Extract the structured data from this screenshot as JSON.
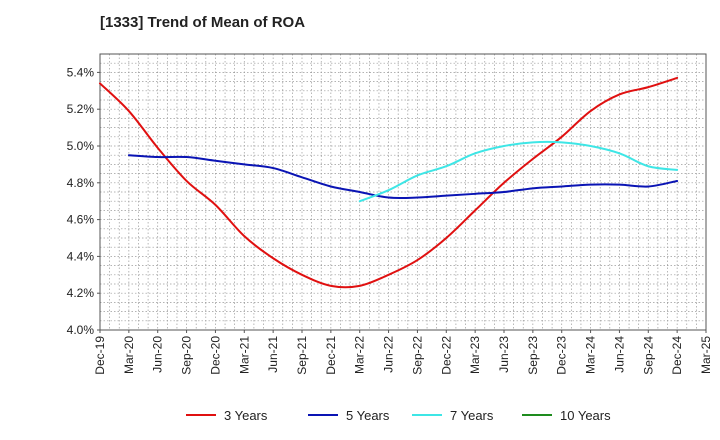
{
  "chart_data": {
    "type": "line",
    "title": "[1333]  Trend of Mean of ROA",
    "xlabel": "",
    "ylabel": "",
    "x_ticks": [
      "Dec-19",
      "Mar-20",
      "Jun-20",
      "Sep-20",
      "Dec-20",
      "Mar-21",
      "Jun-21",
      "Sep-21",
      "Dec-21",
      "Mar-22",
      "Jun-22",
      "Sep-22",
      "Dec-22",
      "Mar-23",
      "Jun-23",
      "Sep-23",
      "Dec-23",
      "Mar-24",
      "Jun-24",
      "Sep-24",
      "Dec-24",
      "Mar-25"
    ],
    "y_ticks": [
      "4.0%",
      "4.2%",
      "4.4%",
      "4.6%",
      "4.8%",
      "5.0%",
      "5.2%",
      "5.4%"
    ],
    "ylim": [
      4.0,
      5.5
    ],
    "y_unit": "%",
    "grid": true,
    "legend_position": "bottom",
    "series": [
      {
        "name": "3 Years",
        "color": "#e01010",
        "points": [
          [
            "Dec-19",
            5.34
          ],
          [
            "Mar-20",
            5.19
          ],
          [
            "Jun-20",
            4.99
          ],
          [
            "Sep-20",
            4.81
          ],
          [
            "Dec-20",
            4.68
          ],
          [
            "Mar-21",
            4.51
          ],
          [
            "Jun-21",
            4.39
          ],
          [
            "Sep-21",
            4.3
          ],
          [
            "Dec-21",
            4.24
          ],
          [
            "Mar-22",
            4.24
          ],
          [
            "Jun-22",
            4.3
          ],
          [
            "Sep-22",
            4.38
          ],
          [
            "Dec-22",
            4.5
          ],
          [
            "Mar-23",
            4.65
          ],
          [
            "Jun-23",
            4.8
          ],
          [
            "Sep-23",
            4.93
          ],
          [
            "Dec-23",
            5.05
          ],
          [
            "Mar-24",
            5.19
          ],
          [
            "Jun-24",
            5.28
          ],
          [
            "Sep-24",
            5.32
          ],
          [
            "Dec-24",
            5.37
          ]
        ]
      },
      {
        "name": "5 Years",
        "color": "#0a14b4",
        "points": [
          [
            "Mar-20",
            4.95
          ],
          [
            "Jun-20",
            4.94
          ],
          [
            "Sep-20",
            4.94
          ],
          [
            "Dec-20",
            4.92
          ],
          [
            "Mar-21",
            4.9
          ],
          [
            "Jun-21",
            4.88
          ],
          [
            "Sep-21",
            4.83
          ],
          [
            "Dec-21",
            4.78
          ],
          [
            "Mar-22",
            4.75
          ],
          [
            "Jun-22",
            4.72
          ],
          [
            "Sep-22",
            4.72
          ],
          [
            "Dec-22",
            4.73
          ],
          [
            "Mar-23",
            4.74
          ],
          [
            "Jun-23",
            4.75
          ],
          [
            "Sep-23",
            4.77
          ],
          [
            "Dec-23",
            4.78
          ],
          [
            "Mar-24",
            4.79
          ],
          [
            "Jun-24",
            4.79
          ],
          [
            "Sep-24",
            4.78
          ],
          [
            "Dec-24",
            4.81
          ]
        ]
      },
      {
        "name": "7 Years",
        "color": "#3ee6e6",
        "points": [
          [
            "Mar-22",
            4.7
          ],
          [
            "Jun-22",
            4.76
          ],
          [
            "Sep-22",
            4.84
          ],
          [
            "Dec-22",
            4.89
          ],
          [
            "Mar-23",
            4.96
          ],
          [
            "Jun-23",
            5.0
          ],
          [
            "Sep-23",
            5.02
          ],
          [
            "Dec-23",
            5.02
          ],
          [
            "Mar-24",
            5.0
          ],
          [
            "Jun-24",
            4.96
          ],
          [
            "Sep-24",
            4.89
          ],
          [
            "Dec-24",
            4.87
          ]
        ]
      },
      {
        "name": "10 Years",
        "color": "#1e8c1e",
        "points": []
      }
    ]
  }
}
